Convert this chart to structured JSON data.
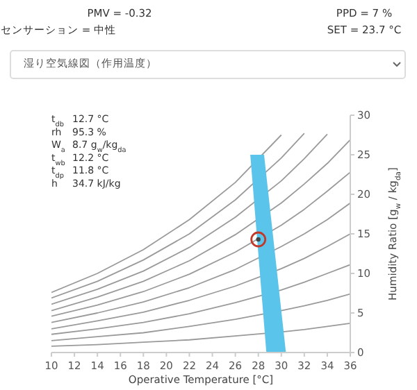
{
  "chart_data": {
    "type": "line",
    "xlabel": "Operative Temperature [°C]",
    "ylabel": "Humidity Ratio [g$_{w}$ / kg$_{da}$]",
    "x": [
      10,
      14,
      18,
      22,
      26,
      30,
      32,
      34,
      36
    ],
    "xlim": [
      10,
      36
    ],
    "xticks": [
      10,
      12,
      14,
      16,
      18,
      20,
      22,
      24,
      26,
      28,
      30,
      32,
      34,
      36
    ],
    "ylim": [
      0,
      30
    ],
    "yticks": [
      0,
      5,
      10,
      15,
      20,
      25,
      30
    ],
    "grid": false,
    "series": [
      {
        "color": "#9a9a9a",
        "values": [
          0.8,
          1.0,
          1.3,
          1.6,
          2.1,
          2.6,
          2.9,
          3.3,
          3.7
        ]
      },
      {
        "color": "#9a9a9a",
        "values": [
          1.5,
          2.0,
          2.5,
          3.3,
          4.2,
          5.3,
          5.9,
          6.6,
          7.4
        ]
      },
      {
        "color": "#9a9a9a",
        "values": [
          2.3,
          3.0,
          3.8,
          4.9,
          6.3,
          7.9,
          8.9,
          10.0,
          11.1
        ]
      },
      {
        "color": "#9a9a9a",
        "values": [
          3.0,
          4.0,
          5.1,
          6.6,
          8.4,
          10.6,
          11.9,
          13.4,
          15.0
        ]
      },
      {
        "color": "#9a9a9a",
        "values": [
          3.8,
          5.0,
          6.4,
          8.2,
          10.5,
          13.4,
          15.0,
          16.8,
          18.9
        ]
      },
      {
        "color": "#9a9a9a",
        "values": [
          4.6,
          6.0,
          7.7,
          9.9,
          12.7,
          16.1,
          18.1,
          20.4,
          22.8
        ]
      },
      {
        "color": "#9a9a9a",
        "values": [
          5.3,
          7.0,
          9.0,
          11.6,
          14.9,
          18.9,
          21.3,
          23.9,
          26.9
        ]
      },
      {
        "color": "#9a9a9a",
        "values": [
          6.1,
          8.0,
          10.3,
          13.3,
          17.1,
          21.7,
          24.5,
          27.6,
          null
        ]
      },
      {
        "color": "#9a9a9a",
        "values": [
          6.9,
          9.0,
          11.7,
          15.0,
          19.3,
          24.6,
          27.7,
          null,
          null
        ]
      },
      {
        "color": "#9a9a9a",
        "values": [
          7.6,
          10.0,
          13.0,
          16.8,
          21.5,
          27.5,
          null,
          null,
          null
        ]
      },
      {
        "type": "area",
        "color": "#5bc4ea",
        "x": [
          28.7,
          30.4,
          28.5,
          27.3
        ],
        "values": [
          0,
          0,
          25,
          25
        ]
      },
      {
        "type": "scatter",
        "color": "#c0392b",
        "marker": "circle",
        "x": [
          28.0
        ],
        "values": [
          14.3
        ]
      }
    ],
    "annotations": [
      "PMV = -0.32",
      "センサーション = 中性",
      "PPD = 7 %",
      "SET = 23.7 °C",
      "湿り空気線図（作用温度）",
      "t$_{db}$",
      "12.7 °C",
      "rh",
      "95.3 %",
      "W$_{a}$",
      "8.7  g$_{w}$/kg$_{da}$",
      "t$_{wb}$",
      "12.2 °C",
      "t$_{dp}$",
      "11.8 °C",
      "h",
      "34.7 kJ/kg"
    ]
  }
}
